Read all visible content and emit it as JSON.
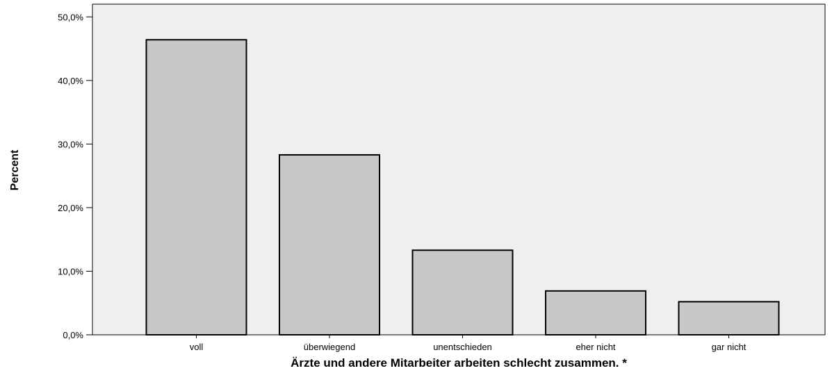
{
  "chart_data": {
    "type": "bar",
    "categories": [
      "voll",
      "überwiegend",
      "unentschieden",
      "eher nicht",
      "gar nicht"
    ],
    "values": [
      46.4,
      28.3,
      13.3,
      6.9,
      5.2
    ],
    "xlabel": "Ärzte und andere Mitarbeiter arbeiten schlecht zusammen. *",
    "ylabel": "Percent",
    "ylim": [
      0,
      52
    ],
    "yticks": [
      0,
      10,
      20,
      30,
      40,
      50
    ],
    "ytick_labels": [
      "0,0%",
      "10,0%",
      "20,0%",
      "30,0%",
      "40,0%",
      "50,0%"
    ],
    "grid": false,
    "colors": {
      "plot_background": "#efefef",
      "bar_fill": "#c8c8c8",
      "bar_stroke": "#000000"
    }
  }
}
